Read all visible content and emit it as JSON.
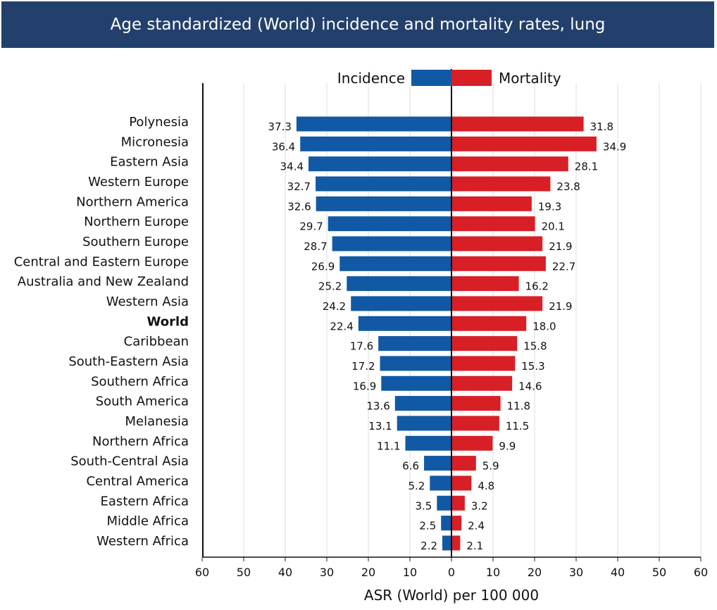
{
  "chart_data": {
    "type": "bar",
    "orientation": "horizontal-butterfly",
    "title": "Age standardized (World) incidence and mortality rates, lung",
    "xlabel": "ASR (World) per 100 000",
    "xlim": [
      -60,
      60
    ],
    "xticks": [
      "60",
      "50",
      "40",
      "30",
      "20",
      "10",
      "0",
      "10",
      "20",
      "30",
      "40",
      "50",
      "60"
    ],
    "grid": true,
    "legend_position": "top-center",
    "colors": {
      "incidence": "#1159a4",
      "mortality": "#d91f26",
      "title_bg": "#23406c"
    },
    "highlight_category": "World",
    "categories": [
      "Polynesia",
      "Micronesia",
      "Eastern Asia",
      "Western Europe",
      "Northern America",
      "Northern Europe",
      "Southern Europe",
      "Central and Eastern Europe",
      "Australia and New Zealand",
      "Western Asia",
      "World",
      "Caribbean",
      "South-Eastern Asia",
      "Southern Africa",
      "South America",
      "Melanesia",
      "Northern Africa",
      "South-Central Asia",
      "Central America",
      "Eastern Africa",
      "Middle Africa",
      "Western Africa"
    ],
    "series": [
      {
        "name": "Incidence",
        "values": [
          37.3,
          36.4,
          34.4,
          32.7,
          32.6,
          29.7,
          28.7,
          26.9,
          25.2,
          24.2,
          22.4,
          17.6,
          17.2,
          16.9,
          13.6,
          13.1,
          11.1,
          6.6,
          5.2,
          3.5,
          2.5,
          2.2
        ]
      },
      {
        "name": "Mortality",
        "values": [
          31.8,
          34.9,
          28.1,
          23.8,
          19.3,
          20.1,
          21.9,
          22.7,
          16.2,
          21.9,
          18.0,
          15.8,
          15.3,
          14.6,
          11.8,
          11.5,
          9.9,
          5.9,
          4.8,
          3.2,
          2.4,
          2.1
        ]
      }
    ]
  }
}
